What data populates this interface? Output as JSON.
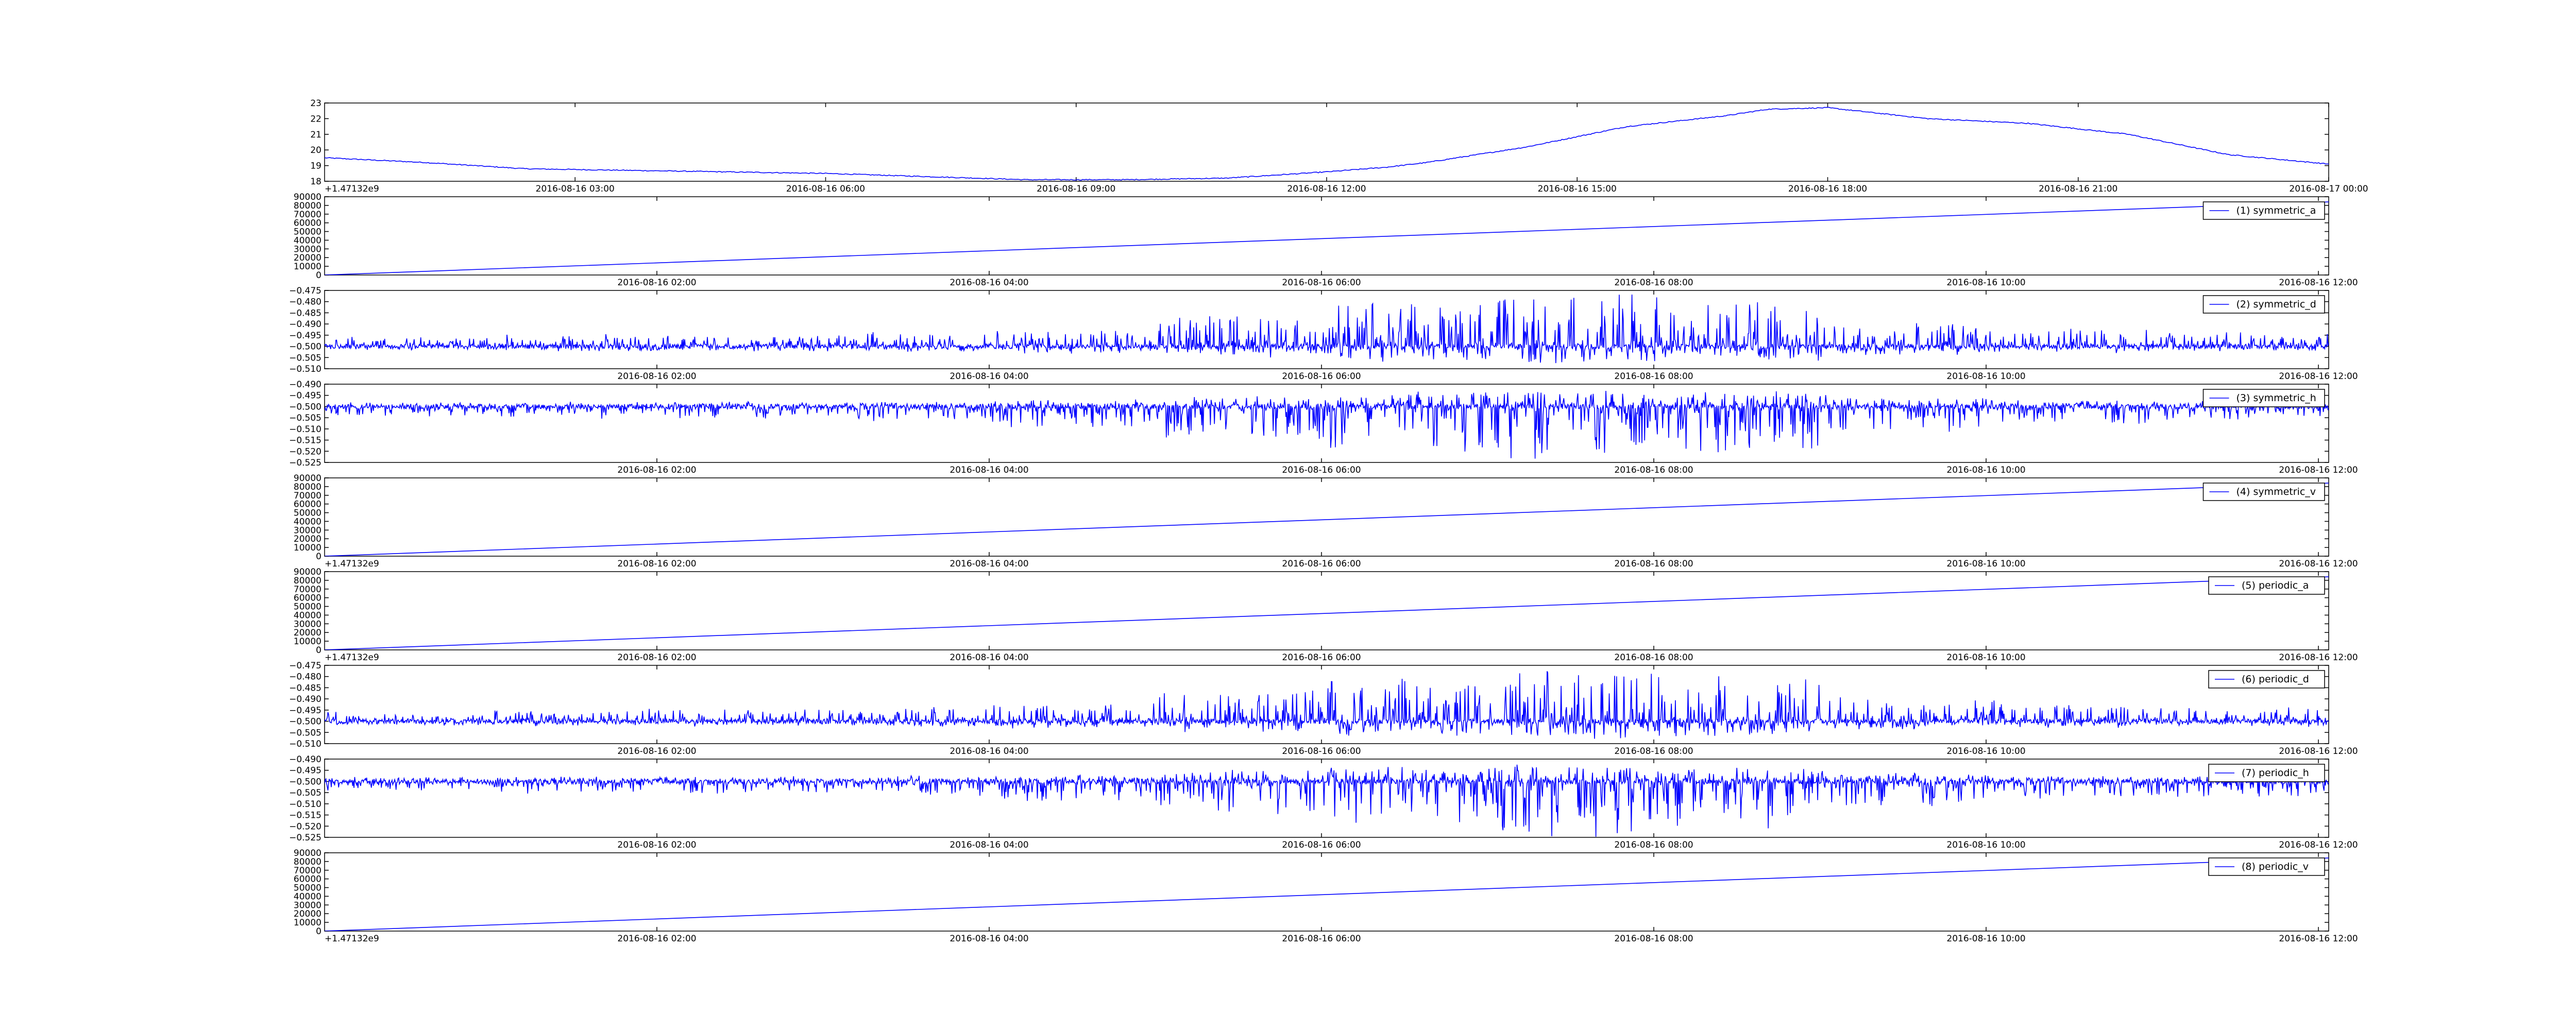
{
  "figure": {
    "line_color": "#0000ff",
    "frame_color": "#000000",
    "background": "#ffffff"
  },
  "chart_data": [
    {
      "type": "line",
      "title": "",
      "xlabel": "",
      "ylabel": "",
      "ylim": [
        18,
        23
      ],
      "yticks": [
        "18",
        "19",
        "20",
        "21",
        "22",
        "23"
      ],
      "xticks": [
        "2016-08-16 03:00",
        "2016-08-16 06:00",
        "2016-08-16 09:00",
        "2016-08-16 12:00",
        "2016-08-16 15:00",
        "2016-08-16 18:00",
        "2016-08-16 21:00",
        "2016-08-17 00:00"
      ],
      "offset_label": "+1.47132e9",
      "legend": null,
      "series": [
        {
          "x": [
            0,
            0.05,
            0.1,
            0.15,
            0.2,
            0.25,
            0.3,
            0.35,
            0.4,
            0.45,
            0.5,
            0.53,
            0.55,
            0.6,
            0.65,
            0.7,
            0.72,
            0.75,
            0.8,
            0.85,
            0.9,
            0.95,
            1.0
          ],
          "values": [
            19.5,
            19.2,
            18.8,
            18.7,
            18.6,
            18.5,
            18.3,
            18.1,
            18.1,
            18.2,
            18.6,
            18.9,
            19.2,
            20.2,
            21.5,
            22.2,
            22.6,
            22.7,
            22.0,
            21.7,
            21.0,
            19.7,
            19.1
          ],
          "noise": 0.06
        }
      ]
    },
    {
      "type": "line",
      "title": "",
      "xlabel": "",
      "ylabel": "",
      "ylim": [
        0,
        90000
      ],
      "yticks": [
        "0",
        "10000",
        "20000",
        "30000",
        "40000",
        "50000",
        "60000",
        "70000",
        "80000",
        "90000"
      ],
      "xticks": [
        "2016-08-16 02:00",
        "2016-08-16 04:00",
        "2016-08-16 06:00",
        "2016-08-16 08:00",
        "2016-08-16 10:00",
        "2016-08-16 12:00"
      ],
      "offset_label": "",
      "legend": "top-right",
      "series": [
        {
          "name": "(1) symmetric_a",
          "x": [
            0,
            1
          ],
          "values": [
            0,
            84000
          ]
        }
      ]
    },
    {
      "type": "line",
      "title": "",
      "xlabel": "",
      "ylabel": "",
      "ylim": [
        -0.51,
        -0.475
      ],
      "yticks": [
        "−0.510",
        "−0.505",
        "−0.500",
        "−0.495",
        "−0.490",
        "−0.485",
        "−0.480",
        "−0.475"
      ],
      "xticks": [
        "2016-08-16 02:00",
        "2016-08-16 04:00",
        "2016-08-16 06:00",
        "2016-08-16 08:00",
        "2016-08-16 10:00",
        "2016-08-16 12:00"
      ],
      "offset_label": "",
      "legend": "top-right",
      "series": [
        {
          "name": "(2) symmetric_d",
          "baseline": -0.5,
          "amp_up": 0.023,
          "amp_down": 0.007,
          "profile": [
            0.15,
            0.2,
            0.2,
            0.25,
            0.35,
            0.6,
            0.85,
            1.0,
            0.85,
            0.45,
            0.3,
            0.25
          ]
        }
      ]
    },
    {
      "type": "line",
      "title": "",
      "xlabel": "",
      "ylabel": "",
      "ylim": [
        -0.525,
        -0.49
      ],
      "yticks": [
        "−0.525",
        "−0.520",
        "−0.515",
        "−0.510",
        "−0.505",
        "−0.500",
        "−0.495",
        "−0.490"
      ],
      "xticks": [
        "2016-08-16 02:00",
        "2016-08-16 04:00",
        "2016-08-16 06:00",
        "2016-08-16 08:00",
        "2016-08-16 10:00",
        "2016-08-16 12:00"
      ],
      "offset_label": "",
      "legend": "top-right",
      "series": [
        {
          "name": "(3) symmetric_h",
          "baseline": -0.5,
          "amp_up": 0.007,
          "amp_down": 0.024,
          "profile": [
            0.15,
            0.2,
            0.2,
            0.25,
            0.35,
            0.6,
            0.85,
            1.0,
            0.85,
            0.45,
            0.3,
            0.25
          ]
        }
      ]
    },
    {
      "type": "line",
      "title": "",
      "xlabel": "",
      "ylabel": "",
      "ylim": [
        0,
        90000
      ],
      "yticks": [
        "0",
        "10000",
        "20000",
        "30000",
        "40000",
        "50000",
        "60000",
        "70000",
        "80000",
        "90000"
      ],
      "xticks": [
        "2016-08-16 02:00",
        "2016-08-16 04:00",
        "2016-08-16 06:00",
        "2016-08-16 08:00",
        "2016-08-16 10:00",
        "2016-08-16 12:00"
      ],
      "offset_label": "+1.47132e9",
      "legend": "top-right",
      "series": [
        {
          "name": "(4) symmetric_v",
          "x": [
            0,
            1
          ],
          "values": [
            0,
            84000
          ]
        }
      ]
    },
    {
      "type": "line",
      "title": "",
      "xlabel": "",
      "ylabel": "",
      "ylim": [
        0,
        90000
      ],
      "yticks": [
        "0",
        "10000",
        "20000",
        "30000",
        "40000",
        "50000",
        "60000",
        "70000",
        "80000",
        "90000"
      ],
      "xticks": [
        "2016-08-16 02:00",
        "2016-08-16 04:00",
        "2016-08-16 06:00",
        "2016-08-16 08:00",
        "2016-08-16 10:00",
        "2016-08-16 12:00"
      ],
      "offset_label": "+1.47132e9",
      "legend": "top-right",
      "series": [
        {
          "name": "(5) periodic_a",
          "x": [
            0,
            1
          ],
          "values": [
            0,
            84000
          ]
        }
      ]
    },
    {
      "type": "line",
      "title": "",
      "xlabel": "",
      "ylabel": "",
      "ylim": [
        -0.51,
        -0.475
      ],
      "yticks": [
        "−0.510",
        "−0.505",
        "−0.500",
        "−0.495",
        "−0.490",
        "−0.485",
        "−0.480",
        "−0.475"
      ],
      "xticks": [
        "2016-08-16 02:00",
        "2016-08-16 04:00",
        "2016-08-16 06:00",
        "2016-08-16 08:00",
        "2016-08-16 10:00",
        "2016-08-16 12:00"
      ],
      "offset_label": "",
      "legend": "top-right",
      "series": [
        {
          "name": "(6) periodic_d",
          "baseline": -0.5,
          "amp_up": 0.023,
          "amp_down": 0.007,
          "profile": [
            0.15,
            0.2,
            0.2,
            0.25,
            0.35,
            0.6,
            0.85,
            1.0,
            0.85,
            0.45,
            0.3,
            0.25
          ]
        }
      ]
    },
    {
      "type": "line",
      "title": "",
      "xlabel": "",
      "ylabel": "",
      "ylim": [
        -0.525,
        -0.49
      ],
      "yticks": [
        "−0.525",
        "−0.520",
        "−0.515",
        "−0.510",
        "−0.505",
        "−0.500",
        "−0.495",
        "−0.490"
      ],
      "xticks": [
        "2016-08-16 02:00",
        "2016-08-16 04:00",
        "2016-08-16 06:00",
        "2016-08-16 08:00",
        "2016-08-16 10:00",
        "2016-08-16 12:00"
      ],
      "offset_label": "",
      "legend": "top-right",
      "series": [
        {
          "name": "(7) periodic_h",
          "baseline": -0.5,
          "amp_up": 0.007,
          "amp_down": 0.024,
          "profile": [
            0.15,
            0.2,
            0.2,
            0.25,
            0.35,
            0.6,
            0.85,
            1.0,
            0.85,
            0.45,
            0.3,
            0.25
          ]
        }
      ]
    },
    {
      "type": "line",
      "title": "",
      "xlabel": "",
      "ylabel": "",
      "ylim": [
        0,
        90000
      ],
      "yticks": [
        "0",
        "10000",
        "20000",
        "30000",
        "40000",
        "50000",
        "60000",
        "70000",
        "80000",
        "90000"
      ],
      "xticks": [
        "2016-08-16 02:00",
        "2016-08-16 04:00",
        "2016-08-16 06:00",
        "2016-08-16 08:00",
        "2016-08-16 10:00",
        "2016-08-16 12:00"
      ],
      "offset_label": "+1.47132e9",
      "legend": "top-right",
      "series": [
        {
          "name": "(8) periodic_v",
          "x": [
            0,
            1
          ],
          "values": [
            0,
            84000
          ]
        }
      ]
    }
  ]
}
